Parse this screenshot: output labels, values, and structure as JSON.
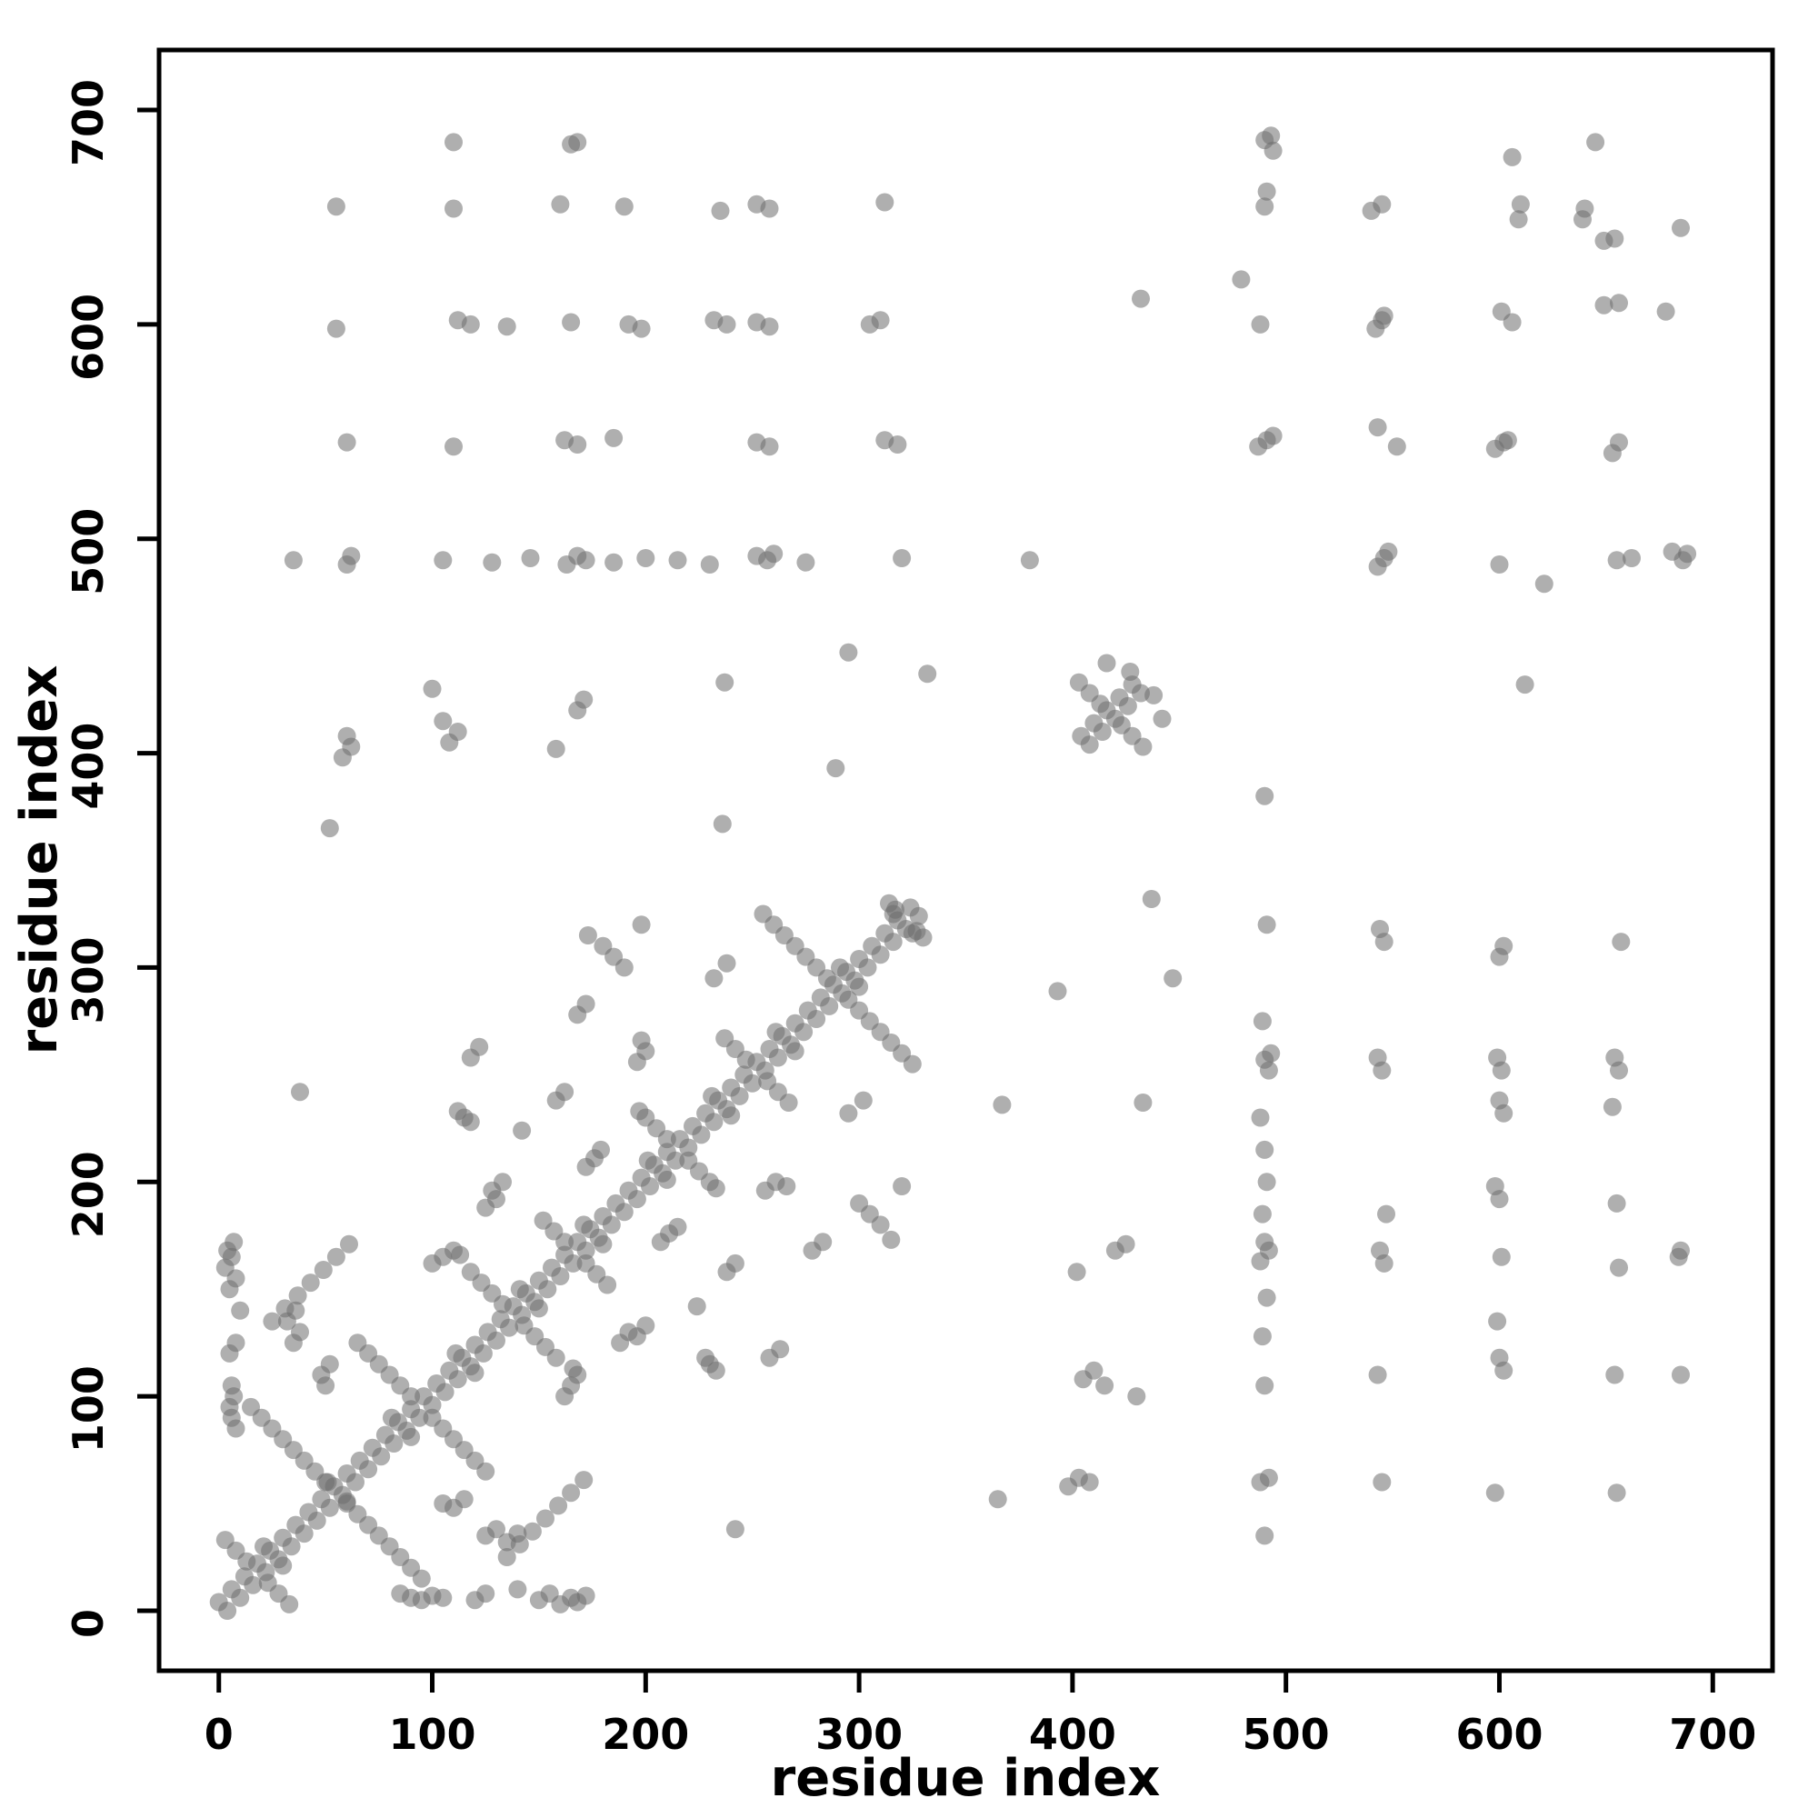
{
  "chart_data": {
    "type": "scatter",
    "title": "",
    "xlabel": "residue index",
    "ylabel": "residue index",
    "xlim": [
      0,
      700
    ],
    "ylim": [
      0,
      700
    ],
    "x_ticks": [
      0,
      100,
      200,
      300,
      400,
      500,
      600,
      700
    ],
    "y_ticks": [
      0,
      100,
      200,
      300,
      400,
      500,
      600,
      700
    ],
    "grid": false,
    "legend": "none",
    "background_color": "#ffffff",
    "frame_color": "#000000",
    "point_color": "#6e6e6e",
    "point_opacity": 0.55,
    "point_radius": 10,
    "symmetric_mirror": true,
    "points": [
      [
        4,
        0
      ],
      [
        10,
        6
      ],
      [
        16,
        12
      ],
      [
        22,
        18
      ],
      [
        28,
        24
      ],
      [
        34,
        30
      ],
      [
        40,
        36
      ],
      [
        46,
        42
      ],
      [
        52,
        48
      ],
      [
        58,
        54
      ],
      [
        64,
        60
      ],
      [
        70,
        66
      ],
      [
        76,
        72
      ],
      [
        82,
        78
      ],
      [
        88,
        84
      ],
      [
        94,
        90
      ],
      [
        100,
        96
      ],
      [
        106,
        102
      ],
      [
        112,
        108
      ],
      [
        118,
        114
      ],
      [
        124,
        120
      ],
      [
        130,
        126
      ],
      [
        136,
        132
      ],
      [
        142,
        138
      ],
      [
        148,
        144
      ],
      [
        154,
        150
      ],
      [
        160,
        156
      ],
      [
        166,
        162
      ],
      [
        172,
        168
      ],
      [
        178,
        174
      ],
      [
        184,
        180
      ],
      [
        190,
        186
      ],
      [
        196,
        192
      ],
      [
        202,
        198
      ],
      [
        208,
        204
      ],
      [
        214,
        210
      ],
      [
        220,
        216
      ],
      [
        226,
        222
      ],
      [
        232,
        228
      ],
      [
        238,
        234
      ],
      [
        244,
        240
      ],
      [
        250,
        246
      ],
      [
        256,
        252
      ],
      [
        262,
        258
      ],
      [
        268,
        264
      ],
      [
        274,
        270
      ],
      [
        280,
        276
      ],
      [
        286,
        282
      ],
      [
        292,
        288
      ],
      [
        298,
        294
      ],
      [
        304,
        300
      ],
      [
        310,
        306
      ],
      [
        316,
        312
      ],
      [
        322,
        318
      ],
      [
        328,
        324
      ],
      [
        30,
        21
      ],
      [
        60,
        51
      ],
      [
        90,
        81
      ],
      [
        120,
        111
      ],
      [
        150,
        141
      ],
      [
        180,
        171
      ],
      [
        210,
        201
      ],
      [
        240,
        231
      ],
      [
        270,
        261
      ],
      [
        300,
        291
      ],
      [
        325,
        316
      ],
      [
        23,
        13
      ],
      [
        28,
        8
      ],
      [
        33,
        3
      ],
      [
        60,
        50
      ],
      [
        65,
        45
      ],
      [
        70,
        40
      ],
      [
        75,
        35
      ],
      [
        80,
        30
      ],
      [
        85,
        25
      ],
      [
        90,
        20
      ],
      [
        95,
        15
      ],
      [
        100,
        90
      ],
      [
        105,
        85
      ],
      [
        110,
        80
      ],
      [
        115,
        75
      ],
      [
        120,
        70
      ],
      [
        125,
        65
      ],
      [
        143,
        133
      ],
      [
        148,
        128
      ],
      [
        153,
        123
      ],
      [
        158,
        118
      ],
      [
        172,
        162
      ],
      [
        177,
        157
      ],
      [
        182,
        152
      ],
      [
        220,
        210
      ],
      [
        225,
        205
      ],
      [
        230,
        200
      ],
      [
        233,
        197
      ],
      [
        257,
        247
      ],
      [
        262,
        242
      ],
      [
        267,
        237
      ],
      [
        295,
        285
      ],
      [
        300,
        280
      ],
      [
        305,
        275
      ],
      [
        310,
        270
      ],
      [
        315,
        265
      ],
      [
        320,
        260
      ],
      [
        325,
        255
      ],
      [
        327,
        317
      ],
      [
        330,
        314
      ],
      [
        85,
        8
      ],
      [
        90,
        6
      ],
      [
        95,
        5
      ],
      [
        100,
        7
      ],
      [
        105,
        6
      ],
      [
        120,
        5
      ],
      [
        125,
        8
      ],
      [
        140,
        10
      ],
      [
        150,
        5
      ],
      [
        155,
        8
      ],
      [
        160,
        3
      ],
      [
        165,
        6
      ],
      [
        168,
        4
      ],
      [
        172,
        7
      ],
      [
        125,
        35
      ],
      [
        130,
        38
      ],
      [
        135,
        32
      ],
      [
        140,
        36
      ],
      [
        105,
        50
      ],
      [
        110,
        48
      ],
      [
        115,
        52
      ],
      [
        135,
        25
      ],
      [
        141,
        31
      ],
      [
        147,
        37
      ],
      [
        153,
        43
      ],
      [
        159,
        49
      ],
      [
        165,
        55
      ],
      [
        171,
        61
      ],
      [
        162,
        100
      ],
      [
        165,
        105
      ],
      [
        168,
        110
      ],
      [
        166,
        113
      ],
      [
        188,
        125
      ],
      [
        192,
        130
      ],
      [
        196,
        128
      ],
      [
        200,
        133
      ],
      [
        228,
        118
      ],
      [
        230,
        115
      ],
      [
        233,
        112
      ],
      [
        207,
        172
      ],
      [
        211,
        176
      ],
      [
        215,
        179
      ],
      [
        238,
        158
      ],
      [
        242,
        162
      ],
      [
        258,
        118
      ],
      [
        263,
        122
      ],
      [
        256,
        196
      ],
      [
        261,
        200
      ],
      [
        266,
        198
      ],
      [
        278,
        168
      ],
      [
        283,
        172
      ],
      [
        300,
        190
      ],
      [
        305,
        185
      ],
      [
        310,
        180
      ],
      [
        315,
        173
      ],
      [
        295,
        232
      ],
      [
        302,
        238
      ],
      [
        320,
        198
      ],
      [
        242,
        38
      ],
      [
        224,
        142
      ],
      [
        365,
        52
      ],
      [
        398,
        58
      ],
      [
        403,
        62
      ],
      [
        408,
        60
      ],
      [
        405,
        108
      ],
      [
        410,
        112
      ],
      [
        415,
        105
      ],
      [
        430,
        100
      ],
      [
        420,
        168
      ],
      [
        425,
        171
      ],
      [
        402,
        158
      ],
      [
        367,
        236
      ],
      [
        433,
        237
      ],
      [
        393,
        289
      ],
      [
        447,
        295
      ],
      [
        437,
        332
      ],
      [
        408,
        404
      ],
      [
        414,
        410
      ],
      [
        420,
        416
      ],
      [
        426,
        422
      ],
      [
        432,
        428
      ],
      [
        423,
        413
      ],
      [
        428,
        408
      ],
      [
        433,
        403
      ],
      [
        438,
        427
      ],
      [
        442,
        416
      ],
      [
        490,
        35
      ],
      [
        488,
        60
      ],
      [
        492,
        62
      ],
      [
        490,
        105
      ],
      [
        489,
        128
      ],
      [
        491,
        146
      ],
      [
        488,
        163
      ],
      [
        492,
        168
      ],
      [
        490,
        172
      ],
      [
        489,
        185
      ],
      [
        491,
        200
      ],
      [
        490,
        215
      ],
      [
        488,
        230
      ],
      [
        492,
        252
      ],
      [
        490,
        257
      ],
      [
        493,
        260
      ],
      [
        489,
        275
      ],
      [
        491,
        320
      ],
      [
        490,
        380
      ],
      [
        545,
        60
      ],
      [
        543,
        110
      ],
      [
        546,
        162
      ],
      [
        544,
        168
      ],
      [
        547,
        185
      ],
      [
        545,
        252
      ],
      [
        543,
        258
      ],
      [
        546,
        312
      ],
      [
        544,
        318
      ],
      [
        543,
        487
      ],
      [
        546,
        491
      ],
      [
        548,
        494
      ],
      [
        552,
        543
      ],
      [
        598,
        55
      ],
      [
        602,
        112
      ],
      [
        600,
        118
      ],
      [
        599,
        135
      ],
      [
        601,
        165
      ],
      [
        600,
        192
      ],
      [
        598,
        198
      ],
      [
        602,
        232
      ],
      [
        600,
        238
      ],
      [
        601,
        252
      ],
      [
        599,
        258
      ],
      [
        600,
        305
      ],
      [
        602,
        310
      ],
      [
        600,
        488
      ],
      [
        598,
        542
      ],
      [
        602,
        545
      ],
      [
        604,
        546
      ],
      [
        606,
        601
      ],
      [
        655,
        55
      ],
      [
        654,
        110
      ],
      [
        656,
        160
      ],
      [
        655,
        190
      ],
      [
        653,
        235
      ],
      [
        656,
        252
      ],
      [
        654,
        258
      ],
      [
        657,
        312
      ],
      [
        655,
        490
      ],
      [
        662,
        491
      ],
      [
        653,
        540
      ],
      [
        656,
        545
      ],
      [
        656,
        610
      ],
      [
        649,
        609
      ],
      [
        654,
        640
      ],
      [
        649,
        639
      ],
      [
        685,
        110
      ],
      [
        684,
        165
      ],
      [
        685,
        168
      ],
      [
        686,
        490
      ],
      [
        688,
        493
      ],
      [
        681,
        494
      ],
      [
        685,
        645
      ],
      [
        621,
        479
      ],
      [
        612,
        432
      ],
      [
        678,
        606
      ]
    ]
  }
}
